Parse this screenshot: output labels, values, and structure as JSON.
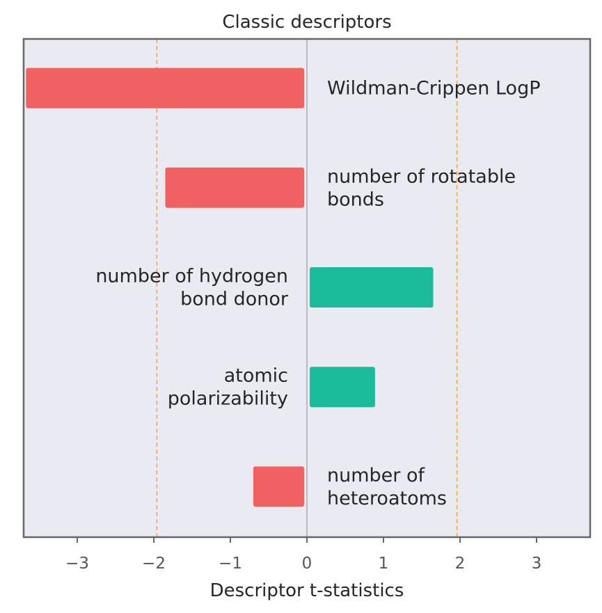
{
  "chart_data": {
    "type": "bar",
    "orientation": "horizontal",
    "title": "Classic descriptors",
    "xlabel": "Descriptor t-statistics",
    "ylabel": "",
    "xlim": [
      -3.7,
      3.7
    ],
    "xticks": [
      -3,
      -2,
      -1,
      0,
      1,
      2,
      3
    ],
    "xtick_labels": [
      "−3",
      "−2",
      "−1",
      "0",
      "1",
      "2",
      "3"
    ],
    "threshold_lines": [
      -1.96,
      1.96
    ],
    "grid": false,
    "categories": [
      [
        "Wildman-Crippen LogP"
      ],
      [
        "number of rotatable",
        "bonds"
      ],
      [
        "number of hydrogen",
        "bond donor"
      ],
      [
        "atomic",
        "polarizability"
      ],
      [
        "number of",
        "heteroatoms"
      ]
    ],
    "values": [
      -3.67,
      -1.85,
      1.65,
      0.89,
      -0.7
    ],
    "colors": {
      "negative": "#f06262",
      "positive": "#1abc9c",
      "threshold": "#f5a742",
      "plot_background": "#eaeaf2",
      "frame": "#666666",
      "zero_line": "#999999"
    }
  }
}
